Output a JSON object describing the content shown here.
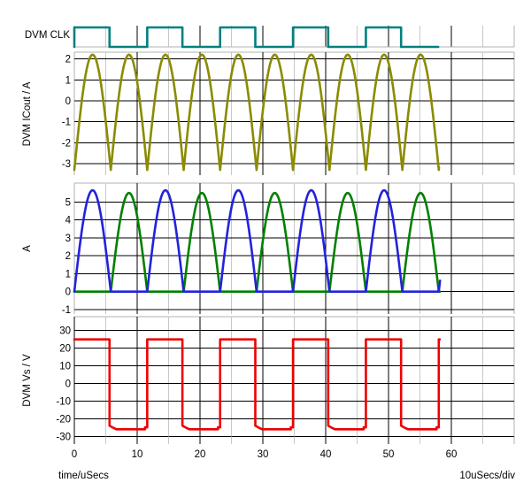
{
  "app": {
    "type": "analog-digital waveform viewer"
  },
  "labels": {
    "clk": "DVM CLK",
    "icout_axis": "DVM ICout / A",
    "a_axis": "A",
    "vs_axis": "DVM Vs / V",
    "x_axis": "time/uSecs",
    "scale": "10uSecs/div"
  },
  "colors": {
    "background": "#ffffff",
    "clk_trace": "#008080",
    "icout_trace": "#8b8b00",
    "a_trace_1": "#2222dd",
    "a_trace_2": "#008000",
    "vs_trace": "#ee0000",
    "grid_major": "#000000",
    "grid_minor": "#c8c8c8",
    "pane_border": "#b0b0b0",
    "text": "#000000"
  },
  "x_axis": {
    "label": "time/uSecs",
    "per_div": "10uSecs/div",
    "ticks": [
      0,
      10,
      20,
      30,
      40,
      50,
      60
    ],
    "minor_ticks": [
      5,
      15,
      25,
      35,
      45,
      55,
      65
    ],
    "range_us": [
      0,
      70
    ]
  },
  "chart_data": [
    {
      "pane": "clk",
      "type": "line",
      "name": "DVM CLK",
      "signal": "digital clock, starts high at t=0",
      "color": "#008080",
      "period_us": 11.6,
      "high_time_us": 5.6,
      "t_end_us": 57.9,
      "levels": [
        "low",
        "high"
      ]
    },
    {
      "pane": "icout",
      "type": "line",
      "name": "DVM ICout / A",
      "color": "#8b8b00",
      "shape": "offset rectified sine: v(t) = v_min + (v_max - v_min)*|sin(pi*t/half_period)| (rounded tops at 2.2, sharp V bottoms at -3.3)",
      "half_period_us": 5.8,
      "v_min": -3.3,
      "v_max": 2.2,
      "t_end_us": 58.05,
      "yticks": [
        2,
        1,
        0,
        -1,
        -2,
        -3
      ],
      "ylim": [
        -3.55,
        2.32
      ]
    },
    {
      "pane": "a",
      "type": "line",
      "name": "A",
      "shape": "alternating half-sine current humps, clamped at 0 between humps",
      "period_us": 11.6,
      "t_end_us": 58.2,
      "series": [
        {
          "name": "current-1",
          "color": "#2222dd",
          "peak": 5.65,
          "conducts": "first half-cycle"
        },
        {
          "name": "current-2",
          "color": "#008000",
          "peak": 5.5,
          "conducts": "second half-cycle"
        }
      ],
      "yticks": [
        5,
        4,
        3,
        2,
        1,
        0,
        -1
      ],
      "ylim": [
        -1.25,
        6.05
      ]
    },
    {
      "pane": "vs",
      "type": "line",
      "name": "DVM Vs / V",
      "color": "#ee0000",
      "shape": "square wave, in phase with clock, slight settling sag on low level",
      "high_v": 25,
      "low_v": -25,
      "fall_overshoot_v": -23.8,
      "low_settle_v": -25.8,
      "pre_rise_v": -24.7,
      "period_us": 11.6,
      "high_time_us": 5.6,
      "t_end_us": 58.15,
      "yticks": [
        30,
        20,
        10,
        0,
        -10,
        -20,
        -30
      ],
      "ylim": [
        -34.15,
        37.85
      ]
    }
  ]
}
